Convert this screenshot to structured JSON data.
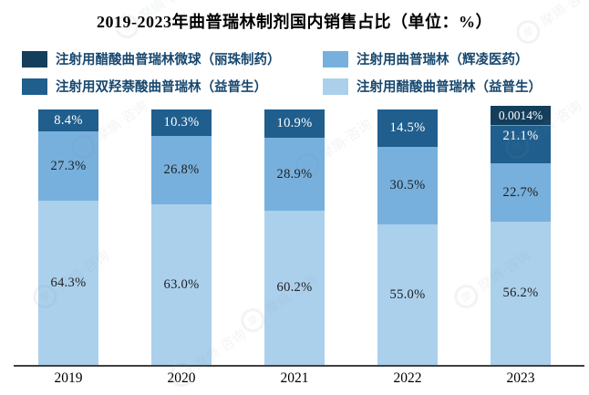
{
  "title": "2019-2023年曲普瑞林制剂国内销售占比（单位：%）",
  "watermark_text": "摩熵·咨询",
  "colors": {
    "series_lizhu_microsphere": "#143E5C",
    "series_ipsen_pamoate": "#1F5E8D",
    "series_ferring": "#77B0DD",
    "series_ipsen_acetate": "#ABD0EC",
    "axis_line": "#404040",
    "legend_text": "#17486F",
    "label_dark": "#1F1F1F",
    "label_light": "#FFFFFF"
  },
  "legend": [
    {
      "label": "注射用醋酸曲普瑞林微球（丽珠制药）",
      "color": "#143E5C"
    },
    {
      "label": "注射用曲普瑞林（辉凌医药）",
      "color": "#77B0DD"
    },
    {
      "label": "注射用双羟萘酸曲普瑞林（益普生）",
      "color": "#1F5E8D"
    },
    {
      "label": "注射用醋酸曲普瑞林（益普生）",
      "color": "#ABD0EC"
    }
  ],
  "chart_data": {
    "type": "bar",
    "stacked": true,
    "percent_of_total": true,
    "title": "2019-2023年曲普瑞林制剂国内销售占比（单位：%）",
    "unit": "%",
    "xlabel": "",
    "ylabel": "",
    "ylim": [
      0,
      100
    ],
    "grid": false,
    "legend_position": "top",
    "categories": [
      "2019",
      "2020",
      "2021",
      "2022",
      "2023"
    ],
    "series_bottom_to_top": [
      {
        "name": "注射用醋酸曲普瑞林（益普生）",
        "color": "#ABD0EC",
        "label_color": "#1F1F1F",
        "values": [
          64.3,
          63.0,
          60.2,
          55.0,
          56.2
        ],
        "labels": [
          "64.3%",
          "63.0%",
          "60.2%",
          "55.0%",
          "56.2%"
        ]
      },
      {
        "name": "注射用曲普瑞林（辉凌医药）",
        "color": "#77B0DD",
        "label_color": "#1F1F1F",
        "values": [
          27.3,
          26.8,
          28.9,
          30.5,
          22.7
        ],
        "labels": [
          "27.3%",
          "26.8%",
          "28.9%",
          "30.5%",
          "22.7%"
        ]
      },
      {
        "name": "注射用双羟萘酸曲普瑞林（益普生）",
        "color": "#1F5E8D",
        "label_color": "#FFFFFF",
        "values": [
          8.4,
          10.3,
          10.9,
          14.5,
          21.1
        ],
        "labels": [
          "8.4%",
          "10.3%",
          "10.9%",
          "14.5%",
          "21.1%"
        ]
      },
      {
        "name": "注射用醋酸曲普瑞林微球（丽珠制药）",
        "color": "#143E5C",
        "label_color": "#FFFFFF",
        "values": [
          0,
          0,
          0,
          0,
          0.0014
        ],
        "labels": [
          "",
          "",
          "",
          "",
          "0.0014%"
        ]
      }
    ]
  }
}
